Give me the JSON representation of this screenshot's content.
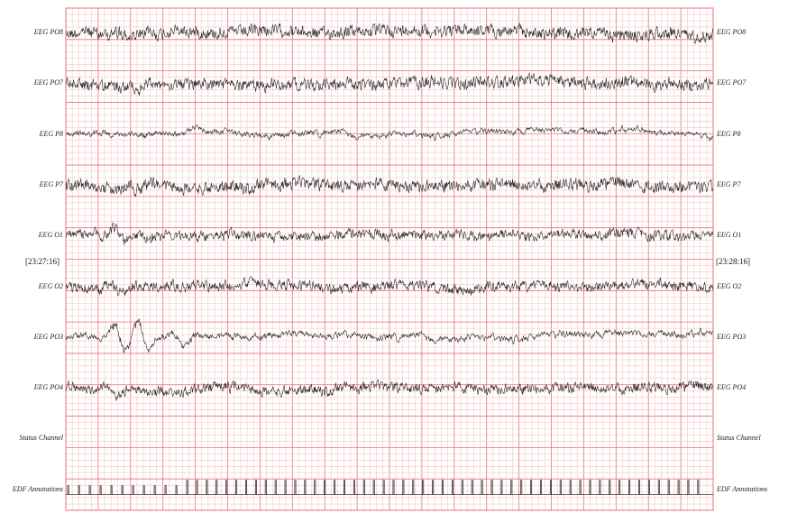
{
  "chart_data": {
    "type": "line",
    "channels": [
      {
        "name": "EEG PO8",
        "amplitude": 6,
        "smooth": 0.35,
        "bursts": [
          [
            65,
            4
          ]
        ]
      },
      {
        "name": "EEG PO7",
        "amplitude": 6,
        "smooth": 0.35,
        "bursts": [
          [
            75,
            5
          ]
        ]
      },
      {
        "name": "EEG P8",
        "amplitude": 2.5,
        "smooth": 0.6,
        "bursts": [
          [
            118,
            2
          ]
        ]
      },
      {
        "name": "EEG P7",
        "amplitude": 6,
        "smooth": 0.35,
        "bursts": [
          [
            75,
            5
          ]
        ]
      },
      {
        "name": "EEG O1",
        "amplitude": 5,
        "smooth": 0.4,
        "bursts": [
          [
            60,
            7
          ]
        ]
      },
      {
        "name": "EEG O2",
        "amplitude": 5,
        "smooth": 0.4,
        "bursts": [
          [
            55,
            6
          ]
        ]
      },
      {
        "name": "EEG PO3",
        "amplitude": 3,
        "smooth": 0.55,
        "bursts": [
          [
            60,
            16
          ],
          [
            85,
            14
          ],
          [
            125,
            12
          ]
        ]
      },
      {
        "name": "EEG PO4",
        "amplitude": 5,
        "smooth": 0.4,
        "bursts": [
          [
            50,
            6
          ]
        ]
      },
      {
        "name": "Status Channel",
        "amplitude": 0,
        "smooth": 0,
        "bursts": []
      },
      {
        "name": "EDF Annotations",
        "amplitude": 0,
        "smooth": 0,
        "bursts": [],
        "pulses": true
      }
    ],
    "time_start": "[23:27:16]",
    "time_end": "[23:28:16]",
    "grid": true
  },
  "colors": {
    "grid_minor": "#f7c4c8",
    "grid_major": "#ee6c78",
    "trace": "#1a1a1a"
  }
}
